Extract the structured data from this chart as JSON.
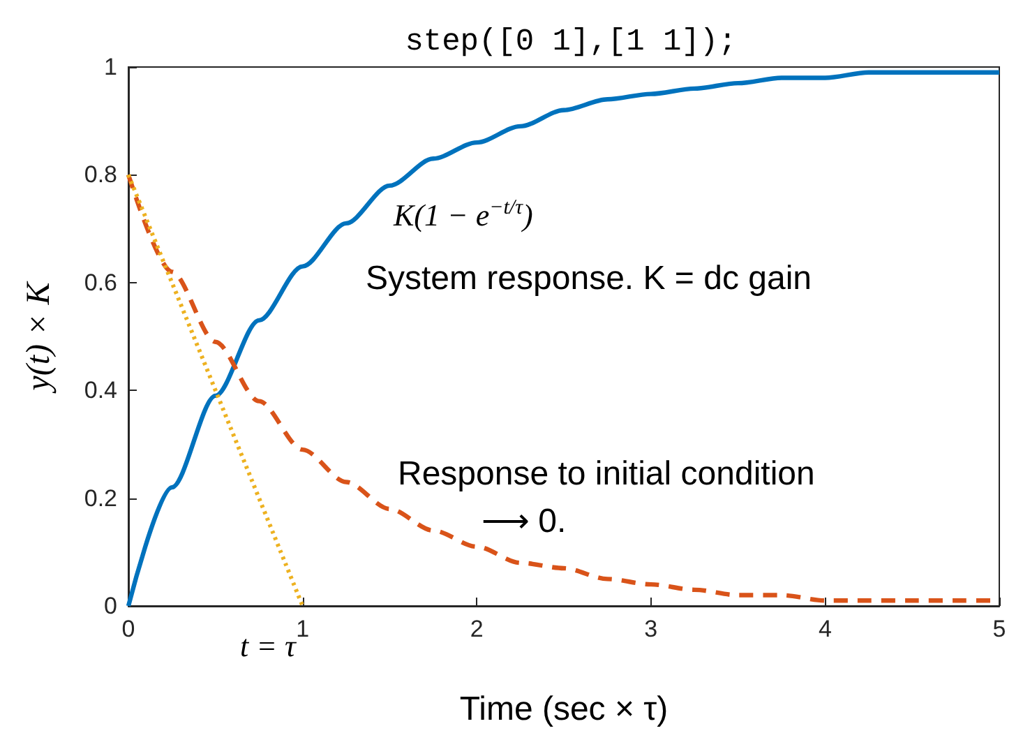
{
  "chart_data": {
    "type": "line",
    "title": "step([0 1],[1 1]);",
    "xlabel": "Time (sec × τ)",
    "ylabel": "y(t) × K",
    "x": [
      0,
      0.25,
      0.5,
      0.75,
      1,
      1.25,
      1.5,
      1.75,
      2,
      2.25,
      2.5,
      2.75,
      3,
      3.25,
      3.5,
      3.75,
      4,
      4.25,
      4.5,
      4.75,
      5
    ],
    "series": [
      {
        "color": "#0072bd",
        "line_style": "solid",
        "values": [
          0,
          0.22,
          0.39,
          0.53,
          0.63,
          0.71,
          0.78,
          0.83,
          0.86,
          0.89,
          0.92,
          0.94,
          0.95,
          0.96,
          0.97,
          0.98,
          0.98,
          0.99,
          0.99,
          0.99,
          0.99
        ]
      },
      {
        "color": "#d95319",
        "line_style": "dashed",
        "values": [
          0.8,
          0.62,
          0.49,
          0.38,
          0.29,
          0.23,
          0.18,
          0.14,
          0.11,
          0.08,
          0.07,
          0.05,
          0.04,
          0.03,
          0.02,
          0.02,
          0.01,
          0.01,
          0.01,
          0.01,
          0.01
        ]
      },
      {
        "color": "#edb120",
        "line_style": "dotted",
        "x": [
          0,
          1
        ],
        "values": [
          0.8,
          0
        ]
      }
    ],
    "xlim": [
      0,
      5
    ],
    "xticks": [
      0,
      1,
      2,
      3,
      4,
      5
    ],
    "ylim": [
      0,
      1
    ],
    "yticks": [
      0,
      0.2,
      0.4,
      0.6,
      0.8,
      1
    ],
    "grid": false,
    "marker": "none",
    "annotations": [
      "K(1 − e$^{−t/τ}$)",
      "System response. K = dc gain",
      "Response to initial condition",
      "⟶ 0.",
      "t = τ"
    ]
  }
}
